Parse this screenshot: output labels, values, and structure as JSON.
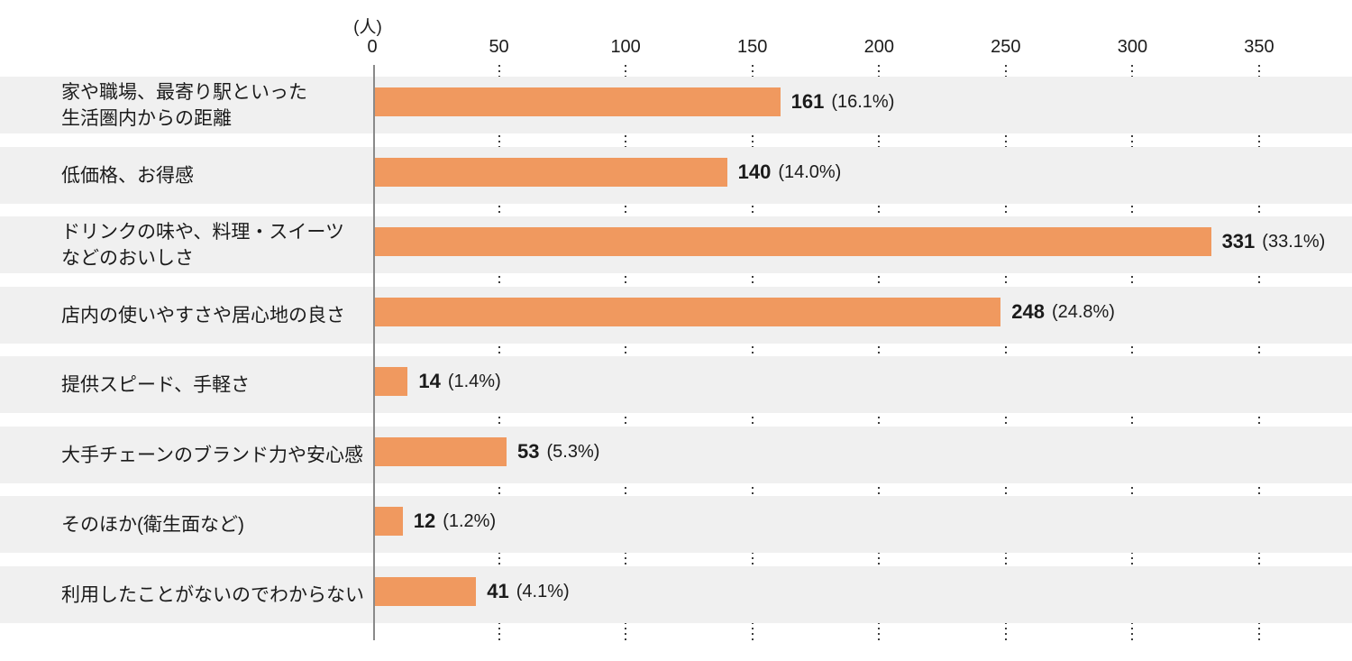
{
  "chart_data": {
    "type": "bar",
    "orientation": "horizontal",
    "title": "",
    "unit_label": "(人)",
    "xlabel": "",
    "ylabel": "",
    "xlim": [
      0,
      350
    ],
    "x_ticks": [
      0,
      50,
      100,
      150,
      200,
      250,
      300,
      350
    ],
    "grid": "dotted-vertical-in-row-gaps",
    "categories": [
      "家や職場、最寄り駅といった\n生活圏内からの距離",
      "低価格、お得感",
      "ドリンクの味や、料理・スイーツ\nなどのおいしさ",
      "店内の使いやすさや居心地の良さ",
      "提供スピード、手軽さ",
      "大手チェーンのブランド力や安心感",
      "そのほか(衛生面など)",
      "利用したことがないのでわからない"
    ],
    "values": [
      161,
      140,
      331,
      248,
      14,
      53,
      12,
      41
    ],
    "percent_labels": [
      "(16.1%)",
      "(14.0%)",
      "(33.1%)",
      "(24.8%)",
      "(1.4%)",
      "(5.3%)",
      "(1.2%)",
      "(4.1%)"
    ],
    "colors": {
      "bar": "#f0995f",
      "row_background": "#f0f0f0",
      "axis_line": "#8a8a8a",
      "grid_dots": "#3d3d3d",
      "text": "#1b1b1b"
    }
  }
}
